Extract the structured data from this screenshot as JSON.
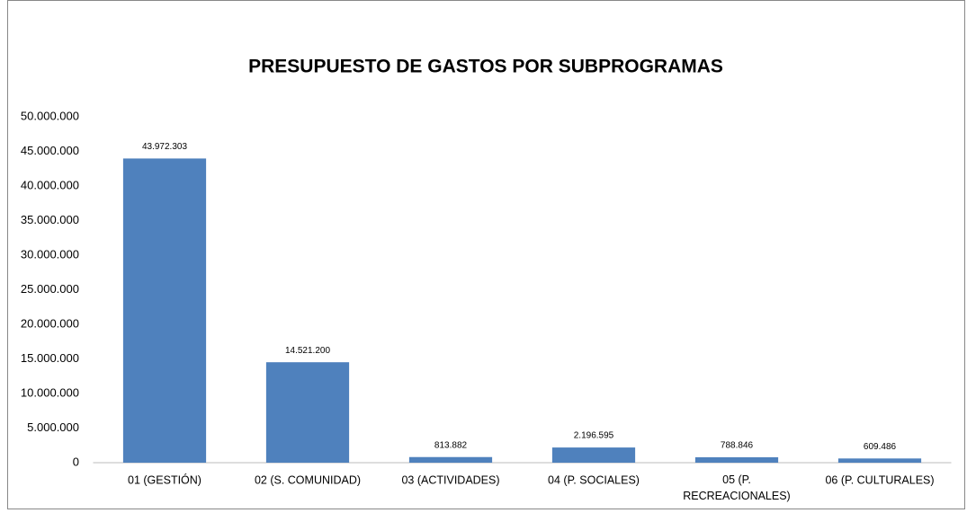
{
  "chart_data": {
    "type": "bar",
    "title": "PRESUPUESTO DE GASTOS POR SUBPROGRAMAS",
    "categories": [
      "01 (GESTIÓN)",
      "02 (S. COMUNIDAD)",
      "03 (ACTIVIDADES)",
      "04 (P. SOCIALES)",
      "05 (P. RECREACIONALES)",
      "06 (P. CULTURALES)"
    ],
    "values": [
      43972303,
      14521200,
      813882,
      2196595,
      788846,
      609486
    ],
    "value_labels": [
      "43.972.303",
      "14.521.200",
      "813.882",
      "2.196.595",
      "788.846",
      "609.486"
    ],
    "color": "#4f81bd",
    "ylim": [
      0,
      50000000
    ],
    "yticks": [
      0,
      {
        "value": 5000000,
        "label": "5.000.000"
      },
      {
        "value": 10000000,
        "label": "10.000.000"
      },
      {
        "value": 15000000,
        "label": "15.000.000"
      },
      {
        "value": 20000000,
        "label": "20.000.000"
      },
      {
        "value": 25000000,
        "label": "25.000.000"
      },
      {
        "value": 30000000,
        "label": "30.000.000"
      },
      {
        "value": 35000000,
        "label": "35.000.000"
      },
      {
        "value": 40000000,
        "label": "40.000.000"
      },
      {
        "value": 45000000,
        "label": "45.000.000"
      },
      {
        "value": 50000000,
        "label": "50.000.000"
      }
    ],
    "grid": false
  }
}
